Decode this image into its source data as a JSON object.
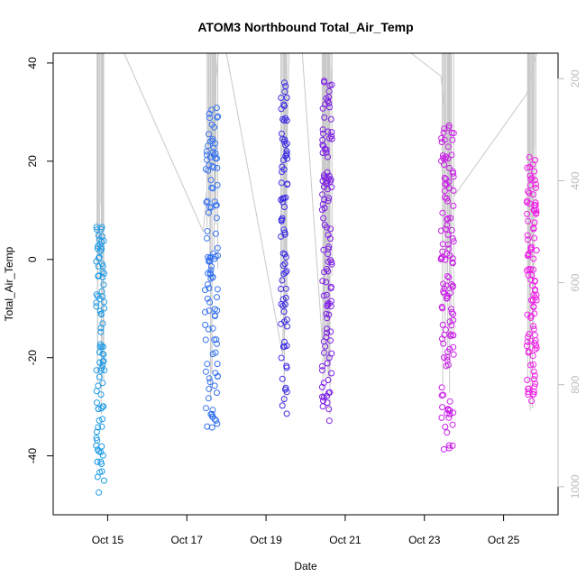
{
  "chart_data": {
    "type": "scatter",
    "title": "ATOM3 Northbound Total_Air_Temp",
    "xlabel": "Date",
    "ylabel": "Total_Air_Temp",
    "xlim": [
      "2021-10-13 15:00",
      "2021-10-26 09:00"
    ],
    "ylim": [
      -52,
      42
    ],
    "y2lim": [
      1055,
      150
    ],
    "x_ticks": [
      {
        "date": "2021-10-15 00:00",
        "label": "Oct 15"
      },
      {
        "date": "2021-10-17 00:00",
        "label": "Oct 17"
      },
      {
        "date": "2021-10-19 00:00",
        "label": "Oct 19"
      },
      {
        "date": "2021-10-21 00:00",
        "label": "Oct 21"
      },
      {
        "date": "2021-10-23 00:00",
        "label": "Oct 23"
      },
      {
        "date": "2021-10-25 00:00",
        "label": "Oct 25"
      }
    ],
    "y_ticks": [
      -40,
      -20,
      0,
      20,
      40
    ],
    "y2_ticks": [
      200,
      400,
      600,
      800,
      1000
    ],
    "grid": false,
    "point_color_start": "#1e9be6",
    "point_color_end": "#ff00dc",
    "line_color": "#c8c8c8",
    "y2_tick_color": "#bdbdbd",
    "clusters": [
      {
        "start": "2021-10-14 17:00",
        "end": "2021-10-14 22:00",
        "tmin": -48,
        "tmax": 7,
        "n": 90,
        "color": "#1e9be6"
      },
      {
        "start": "2021-10-17 11:00",
        "end": "2021-10-17 19:00",
        "tmin": -35,
        "tmax": 31,
        "n": 110,
        "color": "#3773f0"
      },
      {
        "start": "2021-10-19 09:00",
        "end": "2021-10-19 13:00",
        "tmin": -33,
        "tmax": 38,
        "n": 80,
        "color": "#3c2de6"
      },
      {
        "start": "2021-10-20 10:00",
        "end": "2021-10-20 16:00",
        "tmin": -33,
        "tmax": 38,
        "n": 110,
        "color": "#7d1ee6"
      },
      {
        "start": "2021-10-23 10:00",
        "end": "2021-10-23 18:00",
        "tmin": -39,
        "tmax": 29,
        "n": 120,
        "color": "#c81ee6"
      },
      {
        "start": "2021-10-25 14:00",
        "end": "2021-10-25 20:00",
        "tmin": -29,
        "tmax": 21,
        "n": 100,
        "color": "#f01ee6"
      }
    ],
    "pressure_track": [
      {
        "date": "2021-10-15 10:00",
        "p": 150
      },
      {
        "date": "2021-10-17 10:00",
        "p": 500
      },
      {
        "date": "2021-10-17 19:00",
        "p": 150
      },
      {
        "date": "2021-10-18 00:00",
        "p": 150
      },
      {
        "date": "2021-10-19 10:00",
        "p": 740
      },
      {
        "date": "2021-10-19 14:00",
        "p": 150
      },
      {
        "date": "2021-10-19 22:00",
        "p": 150
      },
      {
        "date": "2021-10-20 10:00",
        "p": 710
      },
      {
        "date": "2021-10-20 16:00",
        "p": 150
      },
      {
        "date": "2021-10-22 16:00",
        "p": 150
      },
      {
        "date": "2021-10-23 10:00",
        "p": 195
      },
      {
        "date": "2021-10-23 18:00",
        "p": 430
      },
      {
        "date": "2021-10-25 14:00",
        "p": 230
      },
      {
        "date": "2021-10-25 20:00",
        "p": 150
      }
    ]
  }
}
